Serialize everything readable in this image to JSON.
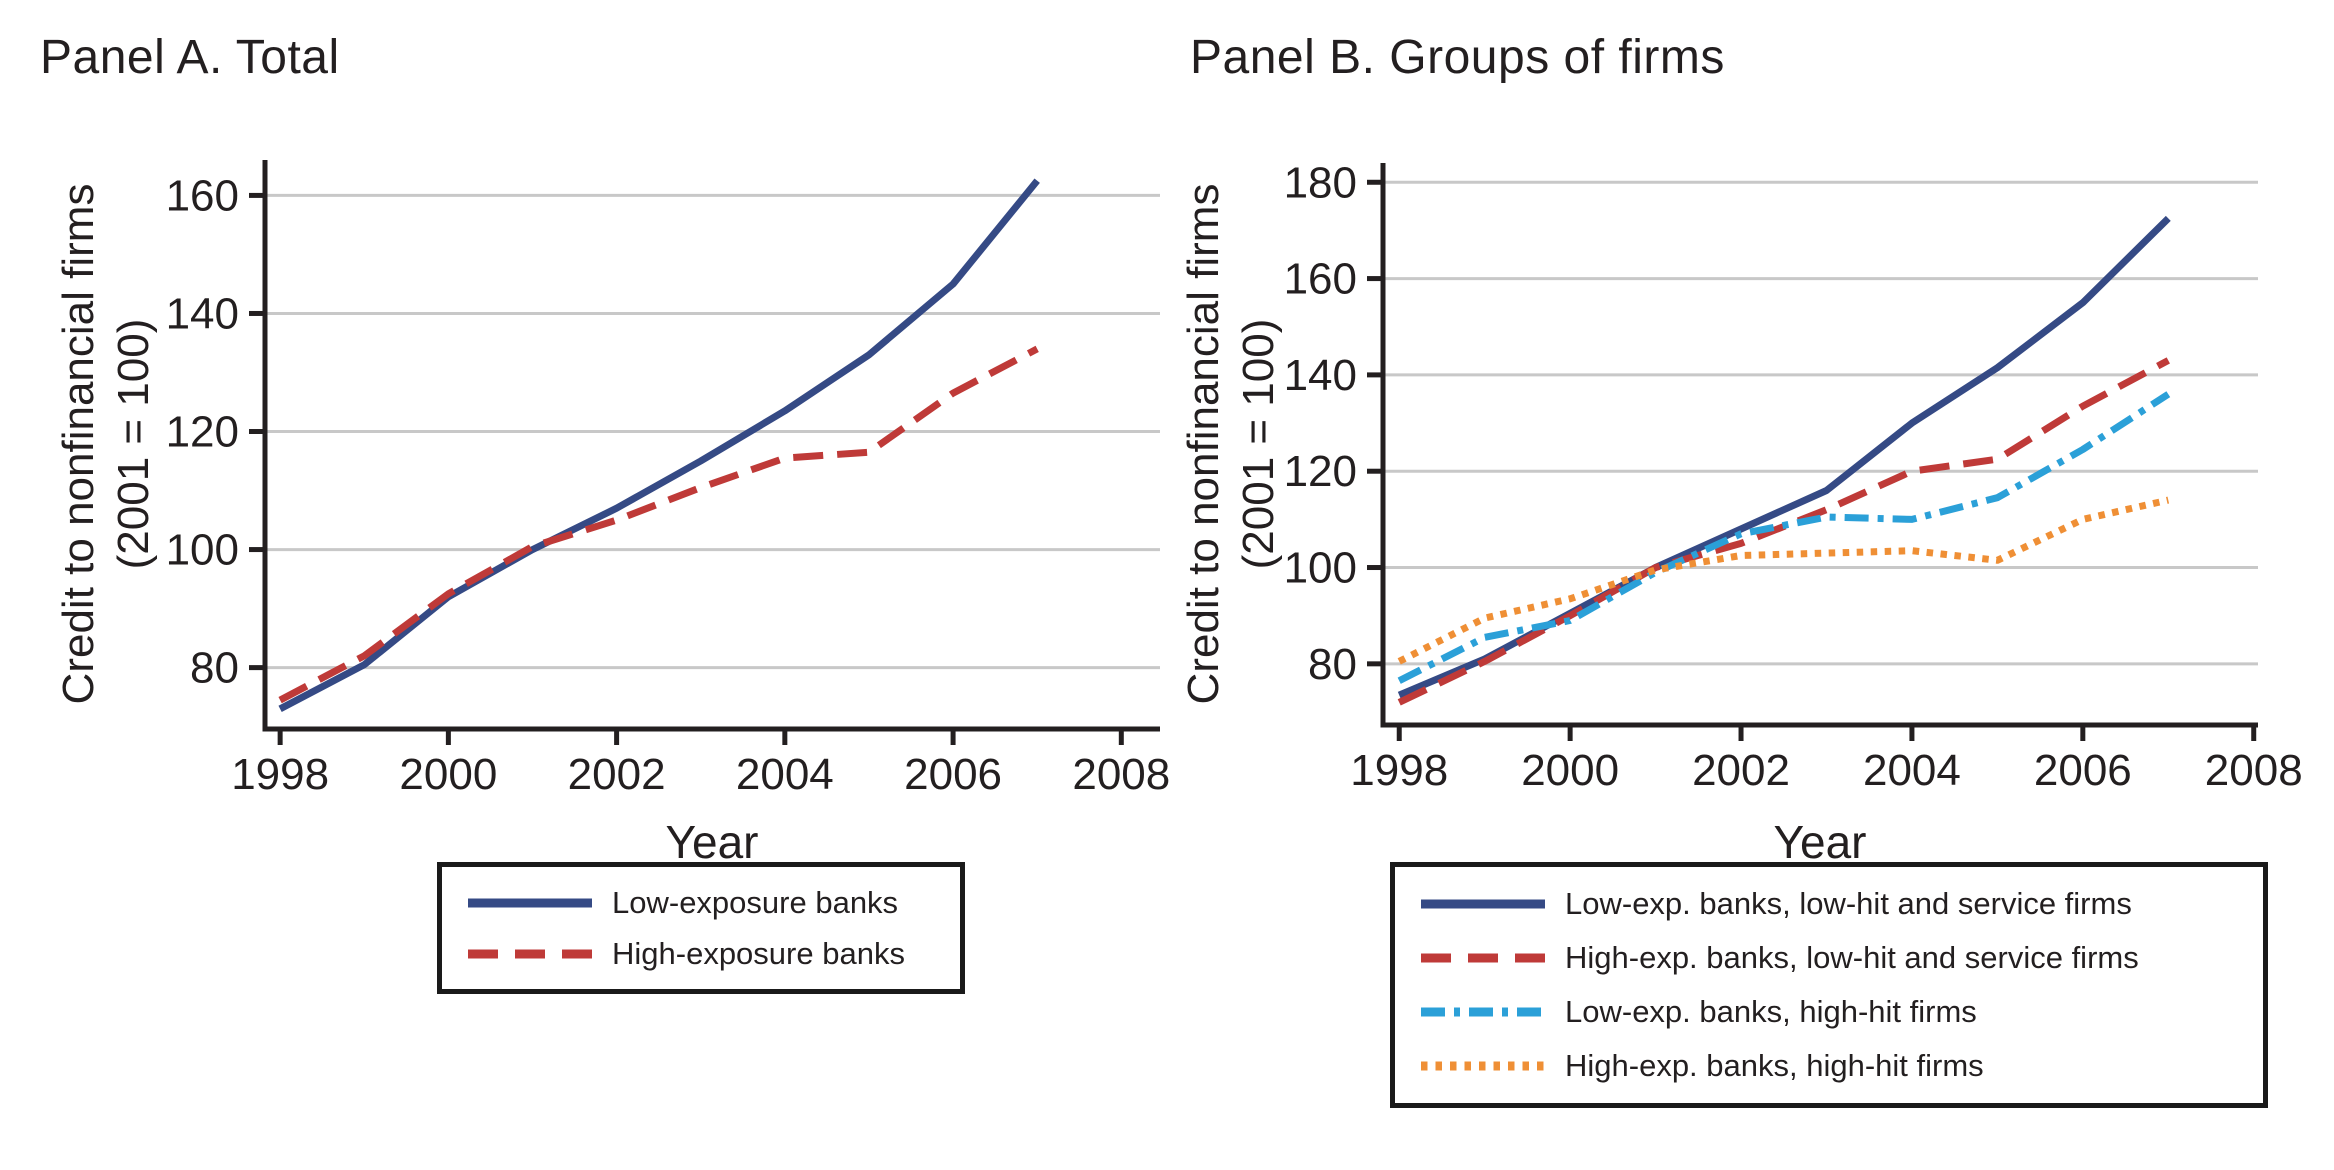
{
  "figure": {
    "background": "#ffffff",
    "text_color": "#231f20",
    "grid_color": "#c8c8c8",
    "axis_color": "#231f20"
  },
  "chart_data": [
    {
      "type": "line",
      "panel": "A",
      "title": "Panel A. Total",
      "xlabel": "Year",
      "ylabel_line1": "Credit to nonfinancial firms",
      "ylabel_line2": "(2001 = 100)",
      "x": [
        1998,
        1999,
        2000,
        2001,
        2002,
        2003,
        2004,
        2005,
        2006,
        2007
      ],
      "xticks": [
        1998,
        2000,
        2002,
        2004,
        2006,
        2008
      ],
      "yticks": [
        80,
        100,
        120,
        140,
        160
      ],
      "xlim": [
        1997.82,
        2008.46
      ],
      "ylim": [
        69.6,
        166.0
      ],
      "grid": true,
      "legend_position": "below",
      "series": [
        {
          "name": "Low-exposure banks",
          "color": "#354a85",
          "style": "solid",
          "values": [
            73,
            80.5,
            92,
            100,
            107,
            115,
            123.5,
            133,
            145,
            162.5
          ]
        },
        {
          "name": "High-exposure banks",
          "color": "#bf3a38",
          "style": "dashed",
          "values": [
            74.5,
            82,
            92.5,
            100.5,
            105,
            110.5,
            115.5,
            116.5,
            126.5,
            134
          ]
        }
      ]
    },
    {
      "type": "line",
      "panel": "B",
      "title": "Panel B. Groups of firms",
      "xlabel": "Year",
      "ylabel_line1": "Credit to nonfinancial firms",
      "ylabel_line2": "(2001 = 100)",
      "x": [
        1998,
        1999,
        2000,
        2001,
        2002,
        2003,
        2004,
        2005,
        2006,
        2007
      ],
      "xticks": [
        1998,
        2000,
        2002,
        2004,
        2006,
        2008
      ],
      "yticks": [
        80,
        100,
        120,
        140,
        160,
        180
      ],
      "xlim": [
        1997.81,
        2008.05
      ],
      "ylim": [
        67.3,
        184.0
      ],
      "grid": true,
      "legend_position": "below",
      "series": [
        {
          "name": "Low-exp. banks, low-hit and service firms",
          "color": "#354a85",
          "style": "solid",
          "values": [
            73.5,
            81,
            90.5,
            100,
            108,
            116,
            130,
            141.5,
            155,
            172.5
          ]
        },
        {
          "name": "High-exp. banks, low-hit and service firms",
          "color": "#bf3a38",
          "style": "dashed",
          "values": [
            72,
            80.5,
            90,
            100,
            105,
            112,
            120,
            122.5,
            133.5,
            143
          ]
        },
        {
          "name": "Low-exp. banks, high-hit firms",
          "color": "#2ba0d8",
          "style": "dashdot",
          "values": [
            76.5,
            85.5,
            89,
            99,
            107,
            110.5,
            110,
            114.5,
            124.5,
            136
          ]
        },
        {
          "name": "High-exp. banks, high-hit firms",
          "color": "#ef8f35",
          "style": "dotted",
          "values": [
            80.5,
            89.5,
            93.5,
            99.5,
            102.5,
            103,
            103.5,
            101.5,
            110,
            114
          ]
        }
      ]
    }
  ]
}
